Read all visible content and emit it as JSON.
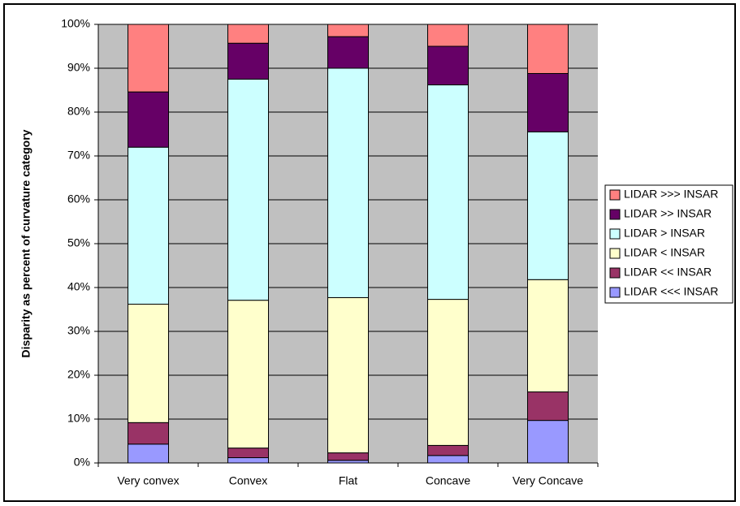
{
  "chart_data": {
    "type": "stacked_bar",
    "y_label": "Disparity as percent of curvature category",
    "categories": [
      "Very convex",
      "Convex",
      "Flat",
      "Concave",
      "Very Concave"
    ],
    "series": [
      {
        "name": "LIDAR <<< INSAR",
        "color": "#9999ff",
        "values": [
          4.3,
          1.2,
          0.6,
          1.7,
          9.7
        ]
      },
      {
        "name": "LIDAR << INSAR",
        "color": "#993366",
        "values": [
          4.9,
          2.2,
          1.7,
          2.3,
          6.5
        ]
      },
      {
        "name": "LIDAR < INSAR",
        "color": "#ffffcc",
        "values": [
          27.0,
          33.7,
          35.4,
          33.3,
          25.6
        ]
      },
      {
        "name": "LIDAR > INSAR",
        "color": "#ccffff",
        "values": [
          35.8,
          50.4,
          52.3,
          48.9,
          33.7
        ]
      },
      {
        "name": "LIDAR >> INSAR",
        "color": "#660066",
        "values": [
          12.6,
          8.2,
          7.2,
          8.8,
          13.3
        ]
      },
      {
        "name": "LIDAR >>> INSAR",
        "color": "#ff8080",
        "values": [
          15.4,
          4.3,
          2.8,
          5.0,
          11.2
        ]
      }
    ],
    "ylim": [
      0,
      100
    ],
    "yticks": [
      {
        "value": 0,
        "label": "0%"
      },
      {
        "value": 10,
        "label": "10%"
      },
      {
        "value": 20,
        "label": "20%"
      },
      {
        "value": 30,
        "label": "30%"
      },
      {
        "value": 40,
        "label": "40%"
      },
      {
        "value": 50,
        "label": "50%"
      },
      {
        "value": 60,
        "label": "60%"
      },
      {
        "value": 70,
        "label": "70%"
      },
      {
        "value": 80,
        "label": "80%"
      },
      {
        "value": 90,
        "label": "90%"
      },
      {
        "value": 100,
        "label": "100%"
      }
    ],
    "grid": true,
    "plot_background": "#c0c0c0",
    "legend": "right"
  }
}
